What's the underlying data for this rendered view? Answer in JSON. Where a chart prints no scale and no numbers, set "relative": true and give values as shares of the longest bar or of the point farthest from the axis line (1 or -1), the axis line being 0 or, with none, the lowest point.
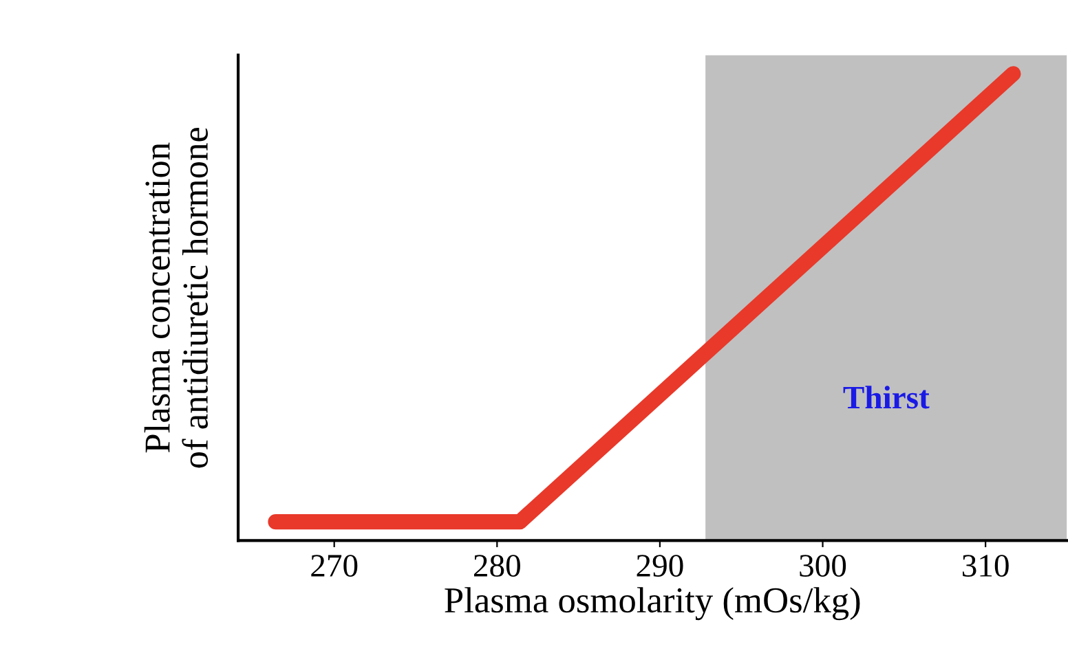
{
  "chart_data": {
    "type": "line",
    "relative": true,
    "xlabel": "Plasma osmolarity (mOs/kg)",
    "ylabel": "Plasma concentration\nof antidiuretic hormone",
    "x": [
      266.4,
      281.4,
      311.7
    ],
    "series": [
      {
        "color": "#e8392a",
        "values": [
          0.04,
          0.04,
          1
        ]
      }
    ],
    "xlim": [
      264.1,
      315
    ],
    "xticks": [
      270,
      280,
      290,
      300,
      310
    ],
    "grid": false,
    "line_style": "solid",
    "bands": [
      {
        "axis": "x",
        "from": 292.8,
        "to": 315,
        "label": "Thirst",
        "color": "#c0c0c0"
      }
    ]
  }
}
